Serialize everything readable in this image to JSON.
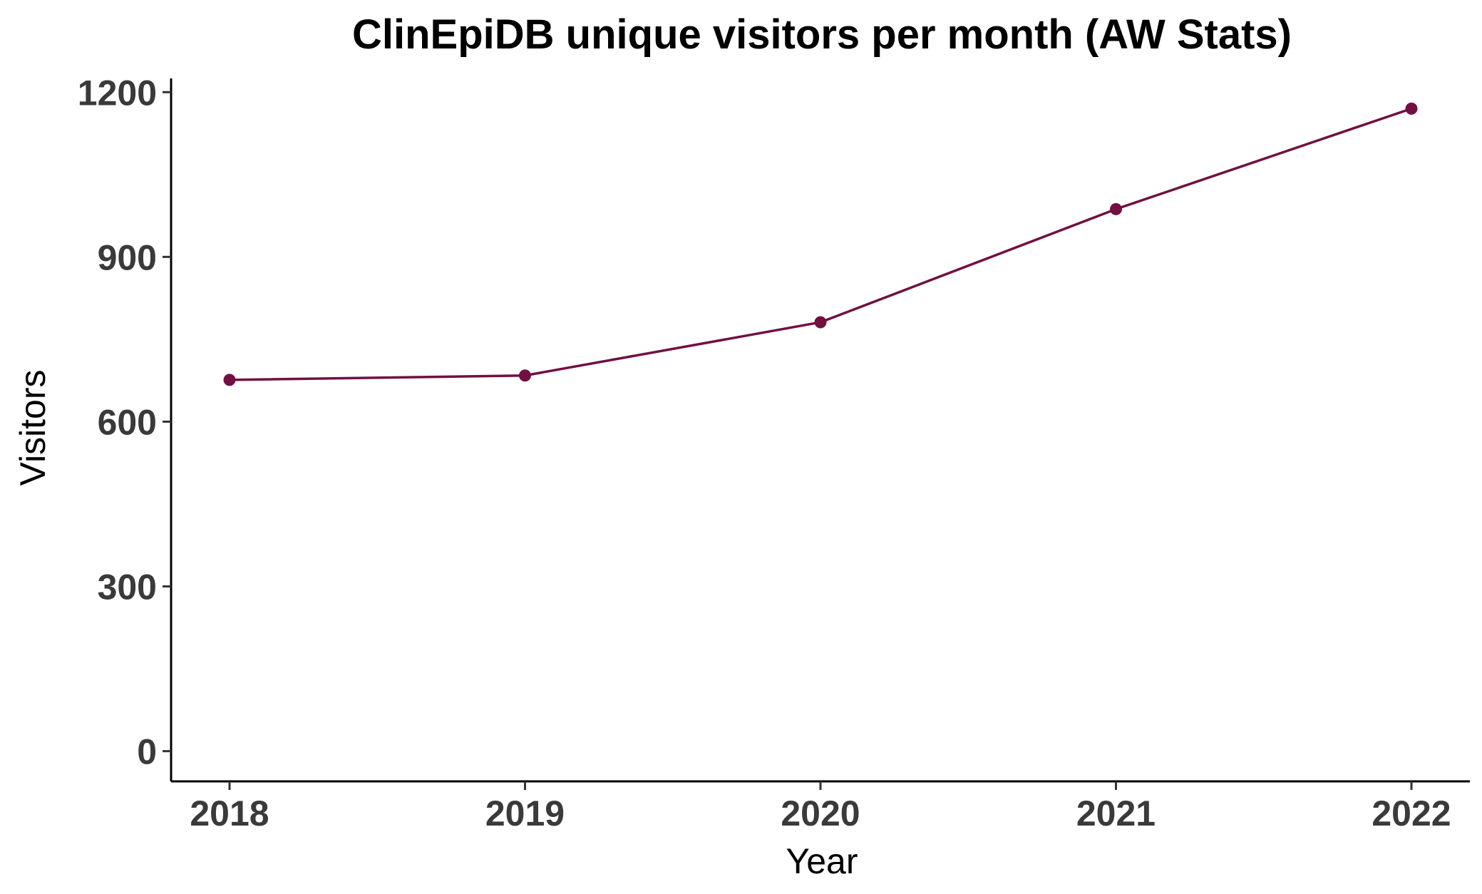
{
  "chart_data": {
    "type": "line",
    "title": "ClinEpiDB unique visitors per month (AW Stats)",
    "xlabel": "Year",
    "ylabel": "Visitors",
    "x": [
      "2018",
      "2019",
      "2020",
      "2021",
      "2022"
    ],
    "series": [
      {
        "values": [
          676,
          684,
          781,
          987,
          1170
        ]
      }
    ],
    "yticks": [
      0,
      300,
      600,
      900,
      1200
    ],
    "ylim": [
      -55,
      1225
    ],
    "grid": false,
    "legend": "none",
    "colors": {
      "series": "#721042",
      "axis": "#000000",
      "tick_label": "#3a3a3a"
    }
  }
}
